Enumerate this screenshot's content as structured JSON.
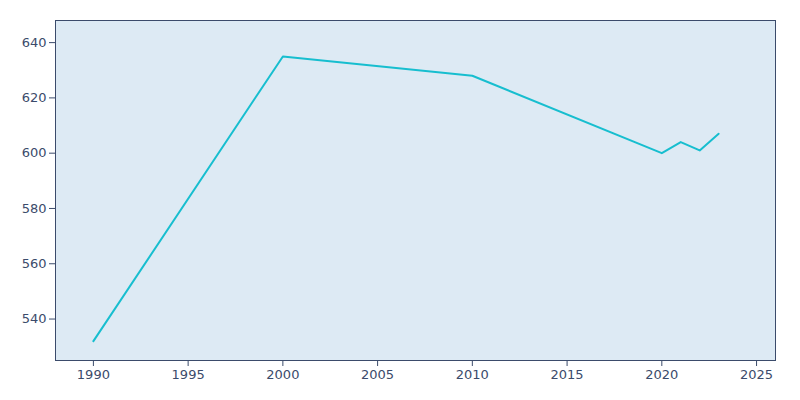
{
  "chart_data": {
    "type": "line",
    "x": [
      1990,
      2000,
      2010,
      2020,
      2021,
      2022,
      2023
    ],
    "values": [
      532,
      635,
      628,
      600,
      604,
      601,
      607
    ],
    "color": "#17BECF",
    "xlim": [
      1988,
      2026
    ],
    "xticks": [
      1990,
      1995,
      2000,
      2005,
      2010,
      2015,
      2020,
      2025
    ],
    "ylim": [
      525,
      648
    ],
    "yticks": [
      540,
      560,
      580,
      600,
      620,
      640
    ],
    "grid": true
  }
}
